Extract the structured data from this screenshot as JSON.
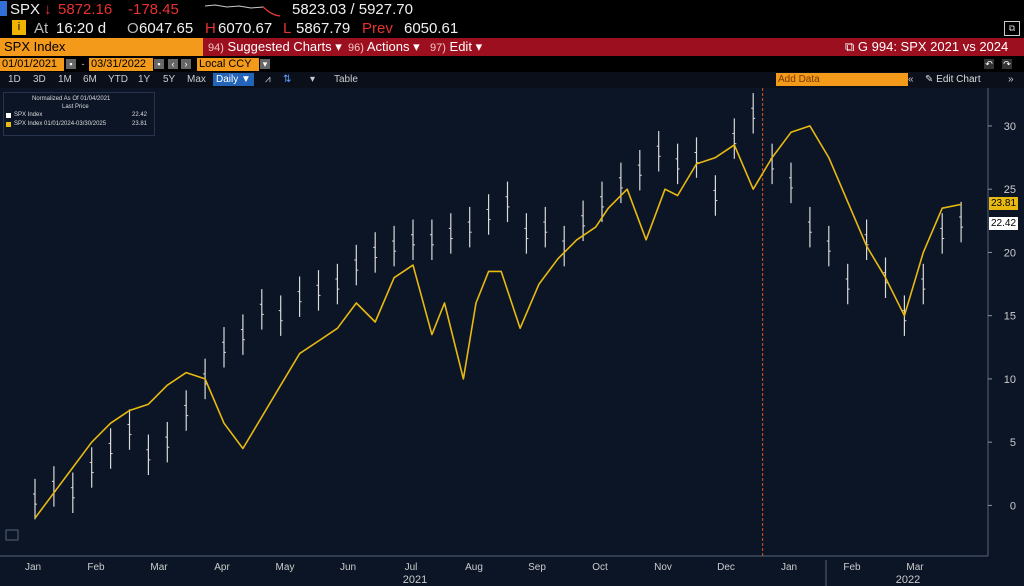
{
  "header": {
    "ticker": "SPX",
    "arrow": "↓",
    "last": "5872.16",
    "change": "-178.45",
    "bid_ask": "5823.03 / 5927.70",
    "at_label": "At",
    "time": "16:20 d",
    "open_label": "O",
    "open": "6047.65",
    "high_label": "H",
    "high": "6070.67",
    "low_label": "L",
    "low": "5867.79",
    "prev_label": "Prev",
    "prev": "6050.61"
  },
  "menubar": {
    "security": "SPX Index",
    "suggested_num": "94)",
    "suggested": "Suggested Charts",
    "actions_num": "96)",
    "actions": "Actions",
    "edit_num": "97)",
    "edit": "Edit",
    "chart_title": "G 994: SPX 2021 vs 2024"
  },
  "controls": {
    "start_date": "01/01/2021",
    "end_date": "03/31/2022",
    "currency": "Local CCY",
    "periods": [
      "1D",
      "3D",
      "1M",
      "6M",
      "YTD",
      "1Y",
      "5Y",
      "Max"
    ],
    "frequency": "Daily",
    "table": "Table",
    "add_data_placeholder": "Add Data",
    "edit_chart": "Edit Chart"
  },
  "legend": {
    "line1": "Normalized As Of 01/04/2021",
    "line2": "Last Price",
    "series1": "SPX Index",
    "series1_value": "22.42",
    "series2": "SPX Index 01/01/2024-03/30/2025",
    "series2_value": "23.81"
  },
  "colors": {
    "plot_bg": "#0b1526",
    "series_2021": "#d9d9d9",
    "series_2024": "#e8b911",
    "today_line": "#d8551e"
  },
  "chart_data": {
    "type": "line",
    "x_unit": "months since Jan 2021",
    "ylim": [
      -4,
      33
    ],
    "yticks": [
      0,
      5,
      10,
      15,
      20,
      25,
      30
    ],
    "months": [
      "Jan",
      "Feb",
      "Mar",
      "Apr",
      "May",
      "Jun",
      "Jul",
      "Aug",
      "Sep",
      "Oct",
      "Nov",
      "Dec",
      "Jan",
      "Feb",
      "Mar"
    ],
    "years": [
      "2021",
      "2022"
    ],
    "series": [
      {
        "name": "SPX Index",
        "style": "bars",
        "last_value": "22.42",
        "x": [
          0.0,
          0.3,
          0.6,
          0.9,
          1.2,
          1.5,
          1.8,
          2.1,
          2.4,
          2.7,
          3.0,
          3.3,
          3.6,
          3.9,
          4.2,
          4.5,
          4.8,
          5.1,
          5.4,
          5.7,
          6.0,
          6.3,
          6.6,
          6.9,
          7.2,
          7.5,
          7.8,
          8.1,
          8.4,
          8.7,
          9.0,
          9.3,
          9.6,
          9.9,
          10.2,
          10.5,
          10.8,
          11.1,
          11.4,
          11.7,
          12.0,
          12.3,
          12.6,
          12.9,
          13.2,
          13.5,
          13.8,
          14.1,
          14.4,
          14.7
        ],
        "y": [
          0.5,
          1.5,
          1.0,
          3.0,
          4.5,
          6.0,
          4.0,
          5.0,
          7.5,
          10.0,
          12.5,
          13.5,
          15.5,
          15.0,
          16.5,
          17.0,
          17.5,
          19.0,
          20.0,
          20.5,
          21.0,
          21.0,
          21.5,
          22.0,
          23.0,
          24.0,
          21.5,
          22.0,
          20.5,
          22.5,
          24.0,
          25.5,
          26.5,
          28.0,
          27.0,
          27.5,
          24.5,
          29.0,
          31.0,
          27.0,
          25.5,
          22.0,
          20.5,
          17.5,
          21.0,
          18.0,
          15.0,
          17.5,
          21.5,
          22.4
        ]
      },
      {
        "name": "SPX Index 01/01/2024-03/30/2025",
        "style": "line",
        "last_value": "23.81",
        "x": [
          0.0,
          0.3,
          0.6,
          0.9,
          1.2,
          1.5,
          1.8,
          2.1,
          2.4,
          2.7,
          3.0,
          3.3,
          3.6,
          3.9,
          4.2,
          4.5,
          4.8,
          5.1,
          5.4,
          5.7,
          6.0,
          6.3,
          6.5,
          6.8,
          7.0,
          7.2,
          7.4,
          7.7,
          8.0,
          8.3,
          8.6,
          8.9,
          9.1,
          9.4,
          9.7,
          10.0,
          10.2,
          10.5,
          10.8,
          11.1,
          11.4,
          11.7,
          12.0,
          12.3,
          12.6,
          12.9,
          13.2,
          13.5,
          13.8,
          14.1,
          14.4,
          14.7
        ],
        "y": [
          -1.0,
          1.0,
          3.0,
          5.0,
          6.5,
          7.5,
          8.0,
          9.5,
          10.5,
          10.0,
          6.5,
          4.5,
          7.0,
          9.5,
          12.0,
          13.0,
          14.0,
          16.0,
          14.5,
          18.0,
          19.0,
          13.5,
          16.0,
          10.0,
          16.0,
          18.5,
          18.5,
          14.0,
          17.5,
          19.5,
          21.0,
          22.0,
          23.5,
          25.0,
          21.0,
          25.0,
          24.5,
          27.0,
          27.5,
          28.5,
          25.0,
          27.5,
          29.5,
          30.0,
          27.5,
          24.0,
          20.5,
          18.0,
          15.0,
          20.0,
          23.5,
          23.8
        ]
      }
    ],
    "today_marker_x": 11.55
  }
}
